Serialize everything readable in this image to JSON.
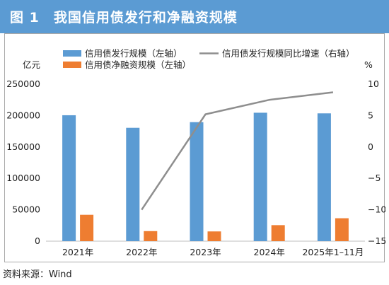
{
  "header": {
    "title": "图 1　我国信用债发行和净融资规模"
  },
  "footer": {
    "source": "资料来源：Wind"
  },
  "colors": {
    "header_bg": "#5b9bd3",
    "issuance_bar": "#5b9bd3",
    "net_financing_bar": "#ee7d31",
    "growth_line": "#8e8e8e"
  },
  "chart_data": {
    "type": "bar",
    "categories": [
      "2021年",
      "2022年",
      "2023年",
      "2024年",
      "2025年1–11月"
    ],
    "series": [
      {
        "name": "信用债发行规模（左轴）",
        "kind": "bar",
        "axis": "left",
        "values": [
          200500,
          180500,
          189500,
          204500,
          203500
        ]
      },
      {
        "name": "信用债净融资规模（左轴）",
        "kind": "bar",
        "axis": "left",
        "values": [
          42000,
          16000,
          15500,
          25500,
          36500
        ]
      },
      {
        "name": "信用债发行规模同比增速（右轴）",
        "kind": "line",
        "axis": "right",
        "values": [
          null,
          -10.0,
          5.2,
          7.5,
          8.7
        ]
      }
    ],
    "left_axis": {
      "unit": "亿元",
      "ylim": [
        0,
        250000
      ],
      "ticks": [
        0,
        50000,
        100000,
        150000,
        200000,
        250000
      ]
    },
    "right_axis": {
      "unit": "%",
      "ylim": [
        -15,
        10
      ],
      "ticks": [
        -15,
        -10,
        -5,
        0,
        5,
        10
      ]
    },
    "legend": [
      "信用债发行规模（左轴）",
      "信用债发行规模同比增速（右轴）",
      "信用债净融资规模（左轴）"
    ],
    "legend_position": "top",
    "grid": false
  }
}
